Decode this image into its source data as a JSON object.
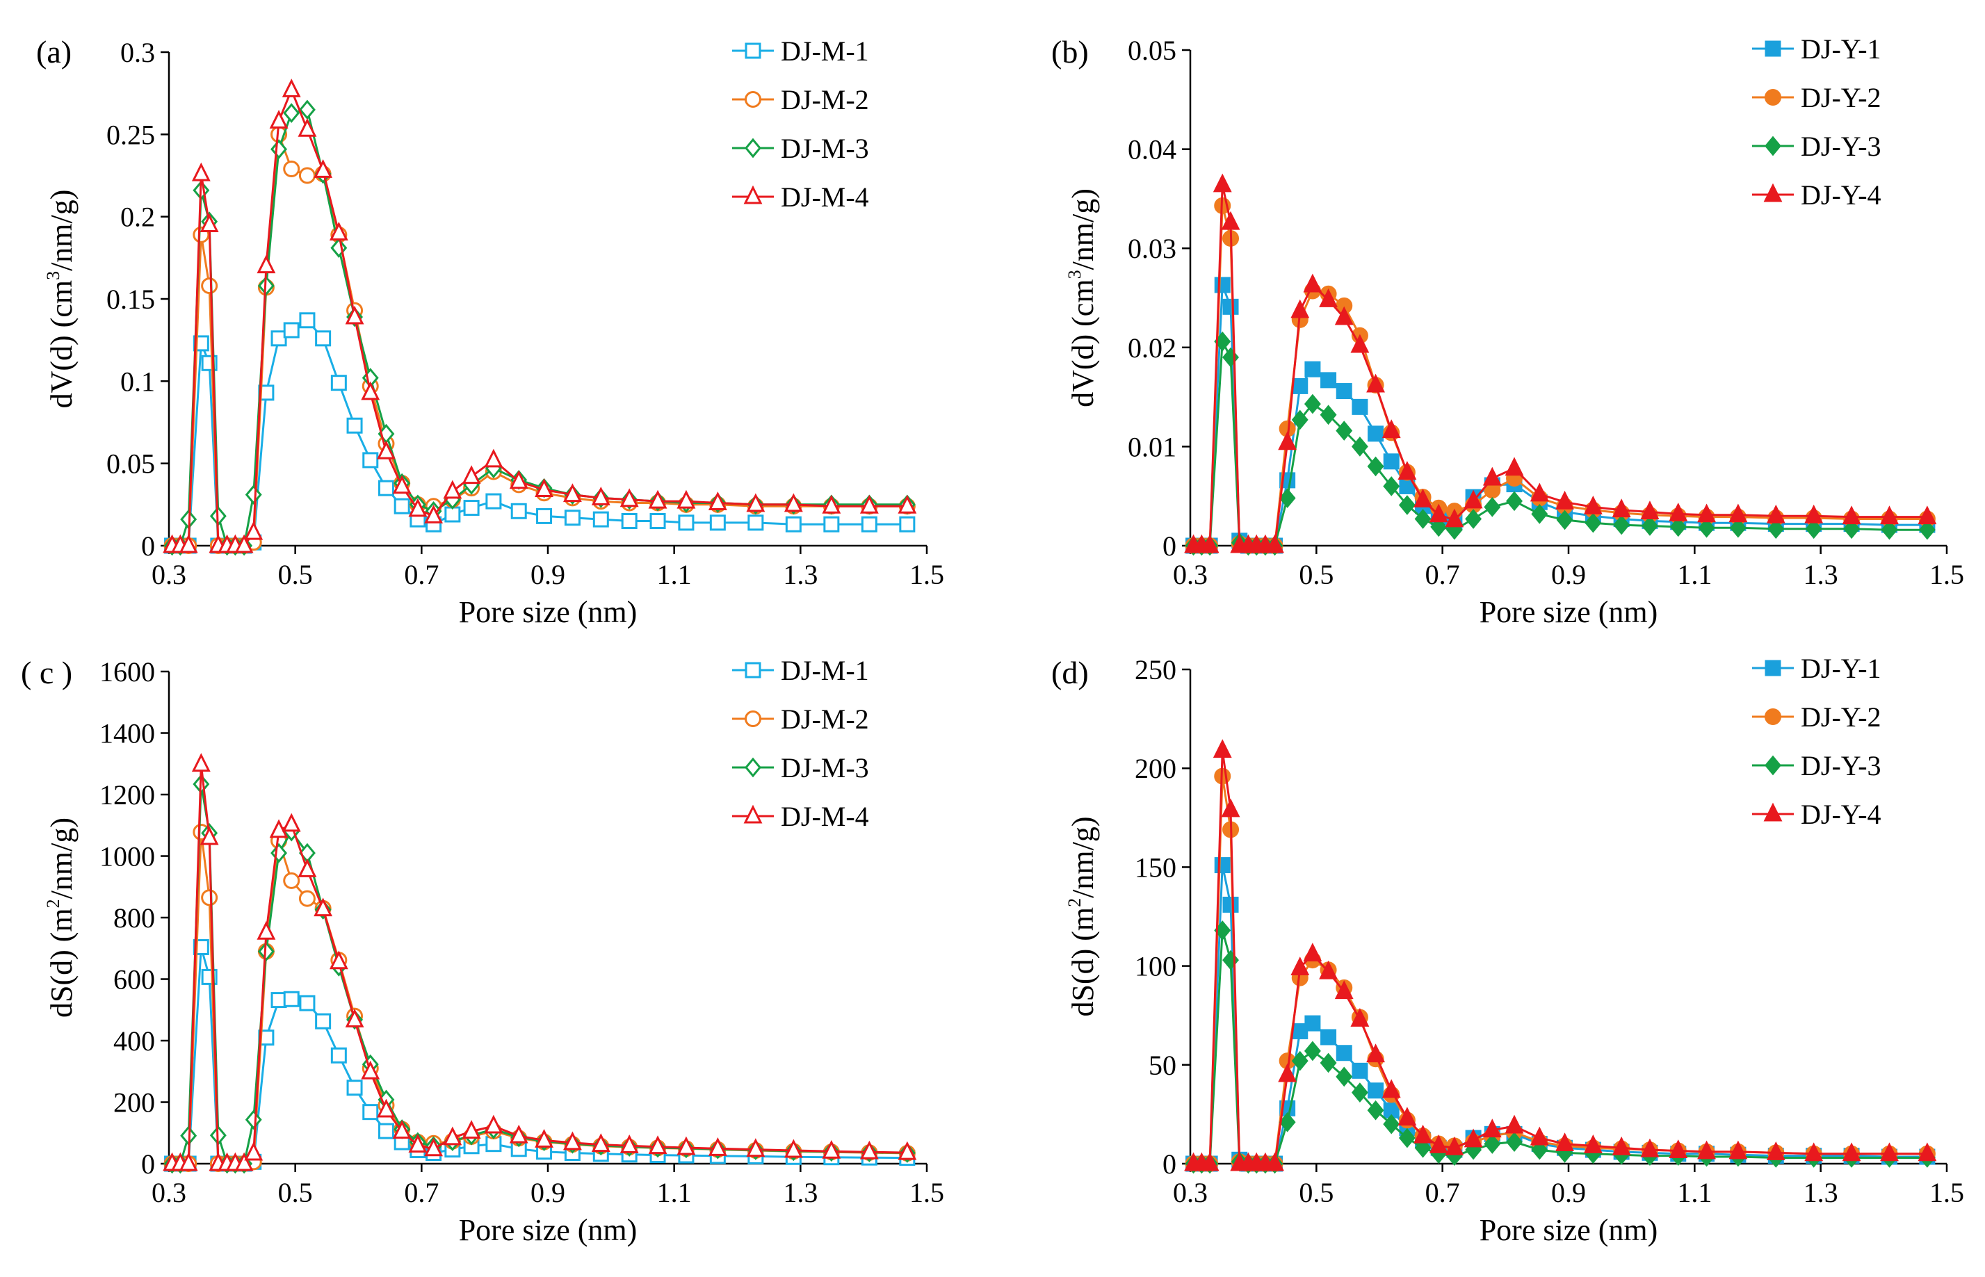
{
  "chart_data": [
    {
      "type": "line",
      "panel_label": "(a)",
      "xlabel": "Pore size (nm)",
      "ylabel": {
        "pre": "dV(d) (cm",
        "sup": "3",
        "post": "/nm/g)"
      },
      "xlim": [
        0.3,
        1.5
      ],
      "ylim": [
        0,
        0.3
      ],
      "xticks": [
        "0.3",
        "0.5",
        "0.7",
        "0.9",
        "1.1",
        "1.3",
        "1.5"
      ],
      "yticks": [
        "0",
        "0.05",
        "0.1",
        "0.15",
        "0.2",
        "0.25",
        "0.3"
      ],
      "grid": false,
      "legend_position": "top-right",
      "marker_fill": "open",
      "x": [
        0.305,
        0.318,
        0.331,
        0.351,
        0.364,
        0.378,
        0.392,
        0.405,
        0.419,
        0.434,
        0.454,
        0.474,
        0.494,
        0.519,
        0.544,
        0.569,
        0.594,
        0.619,
        0.644,
        0.669,
        0.694,
        0.719,
        0.749,
        0.779,
        0.814,
        0.854,
        0.894,
        0.939,
        0.984,
        1.029,
        1.074,
        1.119,
        1.169,
        1.229,
        1.289,
        1.349,
        1.409,
        1.469
      ],
      "series": [
        {
          "name": "DJ-M-1",
          "color": "#19aee6",
          "marker": "square",
          "values": [
            0,
            0,
            0,
            0.123,
            0.111,
            0,
            0,
            0,
            0,
            0.002,
            0.093,
            0.126,
            0.131,
            0.137,
            0.126,
            0.099,
            0.073,
            0.052,
            0.035,
            0.024,
            0.016,
            0.013,
            0.019,
            0.023,
            0.027,
            0.021,
            0.018,
            0.017,
            0.016,
            0.015,
            0.015,
            0.014,
            0.014,
            0.014,
            0.013,
            0.013,
            0.013,
            0.013
          ]
        },
        {
          "name": "DJ-M-2",
          "color": "#f07b1e",
          "marker": "circle",
          "values": [
            0,
            0,
            0,
            0.189,
            0.158,
            0,
            0,
            0,
            0,
            0.002,
            0.157,
            0.25,
            0.229,
            0.225,
            0.226,
            0.189,
            0.143,
            0.097,
            0.062,
            0.038,
            0.025,
            0.024,
            0.028,
            0.035,
            0.045,
            0.037,
            0.032,
            0.029,
            0.027,
            0.026,
            0.026,
            0.025,
            0.025,
            0.024,
            0.024,
            0.024,
            0.024,
            0.024
          ]
        },
        {
          "name": "DJ-M-3",
          "color": "#15a146",
          "marker": "diamond",
          "values": [
            0,
            0,
            0.016,
            0.216,
            0.197,
            0.018,
            0,
            0,
            0,
            0.031,
            0.158,
            0.241,
            0.263,
            0.265,
            0.226,
            0.181,
            0.139,
            0.102,
            0.068,
            0.038,
            0.025,
            0.021,
            0.028,
            0.037,
            0.047,
            0.04,
            0.035,
            0.031,
            0.029,
            0.028,
            0.027,
            0.026,
            0.026,
            0.025,
            0.025,
            0.025,
            0.025,
            0.025
          ]
        },
        {
          "name": "DJ-M-4",
          "color": "#e8191e",
          "marker": "triangle",
          "values": [
            0,
            0,
            0,
            0.226,
            0.195,
            0,
            0,
            0,
            0,
            0.008,
            0.17,
            0.258,
            0.277,
            0.253,
            0.228,
            0.19,
            0.139,
            0.093,
            0.057,
            0.036,
            0.022,
            0.018,
            0.033,
            0.042,
            0.052,
            0.039,
            0.034,
            0.031,
            0.029,
            0.028,
            0.027,
            0.027,
            0.026,
            0.025,
            0.025,
            0.024,
            0.024,
            0.024
          ]
        }
      ]
    },
    {
      "type": "line",
      "panel_label": "(b)",
      "xlabel": "Pore size (nm)",
      "ylabel": {
        "pre": "dV(d) (cm",
        "sup": "3",
        "post": "/nm/g)"
      },
      "xlim": [
        0.3,
        1.5
      ],
      "ylim": [
        0,
        0.05
      ],
      "xticks": [
        "0.3",
        "0.5",
        "0.7",
        "0.9",
        "1.1",
        "1.3",
        "1.5"
      ],
      "yticks": [
        "0",
        "0.01",
        "0.02",
        "0.03",
        "0.04",
        "0.05"
      ],
      "grid": false,
      "legend_position": "top-right",
      "marker_fill": "filled",
      "x": [
        0.305,
        0.318,
        0.331,
        0.351,
        0.364,
        0.378,
        0.392,
        0.405,
        0.419,
        0.434,
        0.454,
        0.474,
        0.494,
        0.519,
        0.544,
        0.569,
        0.594,
        0.619,
        0.644,
        0.669,
        0.694,
        0.719,
        0.749,
        0.779,
        0.814,
        0.854,
        0.894,
        0.939,
        0.984,
        1.029,
        1.074,
        1.119,
        1.169,
        1.229,
        1.289,
        1.349,
        1.409,
        1.469
      ],
      "series": [
        {
          "name": "DJ-Y-1",
          "color": "#1aa0dc",
          "marker": "square",
          "values": [
            0,
            0,
            0,
            0.0263,
            0.0241,
            0.0005,
            0,
            0,
            0,
            0,
            0.0066,
            0.0161,
            0.0178,
            0.0167,
            0.0156,
            0.014,
            0.0113,
            0.0085,
            0.006,
            0.004,
            0.0029,
            0.0024,
            0.0049,
            0.0061,
            0.0062,
            0.0044,
            0.0034,
            0.003,
            0.0027,
            0.0025,
            0.0024,
            0.0023,
            0.0023,
            0.0022,
            0.0022,
            0.0022,
            0.0021,
            0.0021
          ]
        },
        {
          "name": "DJ-Y-2",
          "color": "#f07b1e",
          "marker": "circle",
          "values": [
            0,
            0,
            0,
            0.0343,
            0.031,
            0.0002,
            0,
            0,
            0,
            0,
            0.0118,
            0.0228,
            0.0257,
            0.0254,
            0.0242,
            0.0212,
            0.0162,
            0.0114,
            0.0074,
            0.0049,
            0.0038,
            0.0035,
            0.0041,
            0.0056,
            0.0068,
            0.0048,
            0.004,
            0.0036,
            0.0033,
            0.0031,
            0.003,
            0.0029,
            0.0029,
            0.0028,
            0.0028,
            0.0027,
            0.0027,
            0.0027
          ]
        },
        {
          "name": "DJ-Y-3",
          "color": "#15a146",
          "marker": "diamond",
          "values": [
            0,
            0,
            0,
            0.0206,
            0.019,
            0.0003,
            0,
            0,
            0,
            0,
            0.0048,
            0.0127,
            0.0143,
            0.0132,
            0.0116,
            0.01,
            0.008,
            0.006,
            0.0041,
            0.0027,
            0.0019,
            0.0016,
            0.0027,
            0.0039,
            0.0045,
            0.0032,
            0.0026,
            0.0023,
            0.0021,
            0.002,
            0.0019,
            0.0018,
            0.0018,
            0.0017,
            0.0017,
            0.0017,
            0.0016,
            0.0016
          ]
        },
        {
          "name": "DJ-Y-4",
          "color": "#e8191e",
          "marker": "triangle",
          "values": [
            0,
            0,
            0,
            0.0364,
            0.0326,
            0,
            0,
            0,
            0,
            0,
            0.0104,
            0.0237,
            0.0263,
            0.0248,
            0.023,
            0.0202,
            0.0162,
            0.0116,
            0.0074,
            0.0046,
            0.0031,
            0.0026,
            0.0045,
            0.0068,
            0.0078,
            0.0052,
            0.0044,
            0.0039,
            0.0036,
            0.0034,
            0.0032,
            0.0031,
            0.0031,
            0.003,
            0.003,
            0.0029,
            0.0029,
            0.0029
          ]
        }
      ]
    },
    {
      "type": "line",
      "panel_label": "( c )",
      "xlabel": "Pore size (nm)",
      "ylabel": {
        "pre": "dS(d) (m",
        "sup": "2",
        "post": "/nm/g)"
      },
      "xlim": [
        0.3,
        1.5
      ],
      "ylim": [
        0,
        1600
      ],
      "xticks": [
        "0.3",
        "0.5",
        "0.7",
        "0.9",
        "1.1",
        "1.3",
        "1.5"
      ],
      "yticks": [
        "0",
        "200",
        "400",
        "600",
        "800",
        "1000",
        "1200",
        "1400",
        "1600"
      ],
      "grid": false,
      "legend_position": "top-right",
      "marker_fill": "open",
      "x": [
        0.305,
        0.318,
        0.331,
        0.351,
        0.364,
        0.378,
        0.392,
        0.405,
        0.419,
        0.434,
        0.454,
        0.474,
        0.494,
        0.519,
        0.544,
        0.569,
        0.594,
        0.619,
        0.644,
        0.669,
        0.694,
        0.719,
        0.749,
        0.779,
        0.814,
        0.854,
        0.894,
        0.939,
        0.984,
        1.029,
        1.074,
        1.119,
        1.169,
        1.229,
        1.289,
        1.349,
        1.409,
        1.469
      ],
      "series": [
        {
          "name": "DJ-M-1",
          "color": "#19aee6",
          "marker": "square",
          "values": [
            0,
            0,
            0,
            704,
            607,
            0,
            0,
            0,
            0,
            6,
            410,
            532,
            535,
            522,
            463,
            352,
            247,
            168,
            106,
            70,
            44,
            35,
            46,
            57,
            64,
            48,
            39,
            35,
            32,
            30,
            28,
            27,
            25,
            24,
            22,
            21,
            20,
            19
          ]
        },
        {
          "name": "DJ-M-2",
          "color": "#f07b1e",
          "marker": "circle",
          "values": [
            0,
            0,
            0,
            1078,
            865,
            0,
            0,
            0,
            0,
            6,
            690,
            1050,
            920,
            862,
            830,
            662,
            480,
            310,
            190,
            112,
            70,
            66,
            73,
            88,
            106,
            83,
            71,
            63,
            57,
            54,
            51,
            49,
            46,
            43,
            40,
            38,
            36,
            34
          ]
        },
        {
          "name": "DJ-M-3",
          "color": "#15a146",
          "marker": "diamond",
          "values": [
            0,
            0,
            91,
            1234,
            1075,
            92,
            0,
            0,
            0,
            143,
            690,
            1010,
            1080,
            1010,
            826,
            641,
            468,
            323,
            208,
            112,
            70,
            57,
            73,
            92,
            112,
            86,
            73,
            65,
            59,
            55,
            52,
            50,
            47,
            44,
            41,
            39,
            37,
            35
          ]
        },
        {
          "name": "DJ-M-4",
          "color": "#e8191e",
          "marker": "triangle",
          "values": [
            0,
            0,
            0,
            1298,
            1060,
            0,
            0,
            0,
            0,
            34,
            752,
            1083,
            1103,
            955,
            828,
            656,
            467,
            298,
            174,
            105,
            60,
            48,
            84,
            105,
            122,
            90,
            76,
            68,
            62,
            58,
            55,
            52,
            49,
            46,
            43,
            40,
            38,
            36
          ]
        }
      ]
    },
    {
      "type": "line",
      "panel_label": "(d)",
      "xlabel": "Pore size (nm)",
      "ylabel": {
        "pre": "dS(d) (m",
        "sup": "2",
        "post": "/nm/g)"
      },
      "xlim": [
        0.3,
        1.5
      ],
      "ylim": [
        0,
        250
      ],
      "xticks": [
        "0.3",
        "0.5",
        "0.7",
        "0.9",
        "1.1",
        "1.3",
        "1.5"
      ],
      "yticks": [
        "0",
        "50",
        "100",
        "150",
        "200",
        "250"
      ],
      "grid": false,
      "legend_position": "top-right",
      "marker_fill": "filled",
      "x": [
        0.305,
        0.318,
        0.331,
        0.351,
        0.364,
        0.378,
        0.392,
        0.405,
        0.419,
        0.434,
        0.454,
        0.474,
        0.494,
        0.519,
        0.544,
        0.569,
        0.594,
        0.619,
        0.644,
        0.669,
        0.694,
        0.719,
        0.749,
        0.779,
        0.814,
        0.854,
        0.894,
        0.939,
        0.984,
        1.029,
        1.074,
        1.119,
        1.169,
        1.229,
        1.289,
        1.349,
        1.409,
        1.469
      ],
      "series": [
        {
          "name": "DJ-Y-1",
          "color": "#1aa0dc",
          "marker": "square",
          "values": [
            0,
            0,
            0,
            151,
            131,
            2,
            0,
            0,
            0,
            0,
            28,
            67,
            71,
            64,
            56,
            47,
            37,
            27,
            18,
            12,
            8,
            7,
            13,
            15,
            15,
            10,
            8,
            7,
            6,
            5.5,
            5,
            5,
            4.5,
            4,
            4,
            4,
            3.5,
            3.5
          ]
        },
        {
          "name": "DJ-Y-2",
          "color": "#f07b1e",
          "marker": "circle",
          "values": [
            0,
            0,
            0,
            196,
            169,
            1,
            0,
            0,
            0,
            0,
            52,
            94,
            103,
            98,
            89,
            74,
            53,
            35,
            22,
            14,
            10,
            9,
            11,
            14,
            16,
            11,
            9,
            8,
            7.5,
            7,
            6.5,
            6,
            6,
            5.5,
            5,
            5,
            5,
            5
          ]
        },
        {
          "name": "DJ-Y-3",
          "color": "#15a146",
          "marker": "diamond",
          "values": [
            0,
            0,
            0,
            118,
            103,
            1,
            0,
            0,
            0,
            0,
            21,
            52,
            57,
            51,
            44,
            36,
            27,
            20,
            13,
            8,
            5,
            4,
            7,
            10,
            11,
            7,
            5.5,
            5,
            4.5,
            4,
            4,
            3.5,
            3.5,
            3,
            3,
            3,
            3,
            3
          ]
        },
        {
          "name": "DJ-Y-4",
          "color": "#e8191e",
          "marker": "triangle",
          "values": [
            0,
            0,
            0,
            209,
            179,
            0,
            0,
            0,
            0,
            0,
            45,
            99,
            106,
            97,
            87,
            73,
            55,
            37,
            23,
            14,
            9,
            8,
            12,
            17,
            19,
            13,
            10,
            9,
            8,
            7,
            6.5,
            6,
            6,
            5.5,
            5,
            5,
            5,
            5
          ]
        }
      ]
    }
  ]
}
